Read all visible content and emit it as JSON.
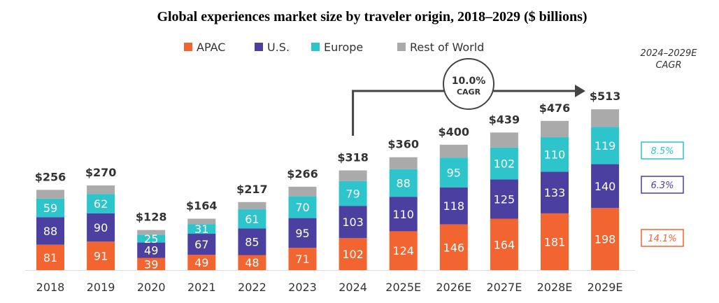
{
  "chart_data": {
    "type": "bar",
    "stacked": true,
    "title": "Global experiences market size by traveler origin, 2018–2029 ($ billions)",
    "categories": [
      "2018",
      "2019",
      "2020",
      "2021",
      "2022",
      "2023",
      "2024",
      "2025E",
      "2026E",
      "2027E",
      "2028E",
      "2029E"
    ],
    "totals": [
      "$256",
      "$270",
      "$128",
      "$164",
      "$217",
      "$266",
      "$318",
      "$360",
      "$400",
      "$439",
      "$476",
      "$513"
    ],
    "series": [
      {
        "name": "APAC",
        "color": "#F26430",
        "values": [
          81,
          91,
          39,
          49,
          48,
          71,
          102,
          124,
          146,
          164,
          181,
          198
        ]
      },
      {
        "name": "U.S.",
        "color": "#4B3FA0",
        "values": [
          88,
          90,
          49,
          67,
          85,
          95,
          103,
          110,
          118,
          125,
          133,
          140
        ]
      },
      {
        "name": "Europe",
        "color": "#2EC4CB",
        "values": [
          59,
          62,
          25,
          31,
          61,
          70,
          79,
          88,
          95,
          102,
          110,
          119
        ]
      },
      {
        "name": "Rest of World",
        "color": "#AAAAAA",
        "values": [
          28,
          27,
          15,
          17,
          23,
          30,
          34,
          38,
          41,
          48,
          52,
          56
        ]
      }
    ],
    "ylim": [
      0,
      540
    ],
    "legend_position": "top",
    "cagr": {
      "header_line1": "2024–2029E",
      "header_line2": "CAGR",
      "overall_value": "10.0%",
      "overall_label": "CAGR",
      "by_series": [
        {
          "series": "Europe",
          "value": "8.5%",
          "color": "#2EC4CB"
        },
        {
          "series": "U.S.",
          "value": "6.3%",
          "color": "#4B3FA0"
        },
        {
          "series": "APAC",
          "value": "14.1%",
          "color": "#F26430"
        }
      ]
    }
  }
}
